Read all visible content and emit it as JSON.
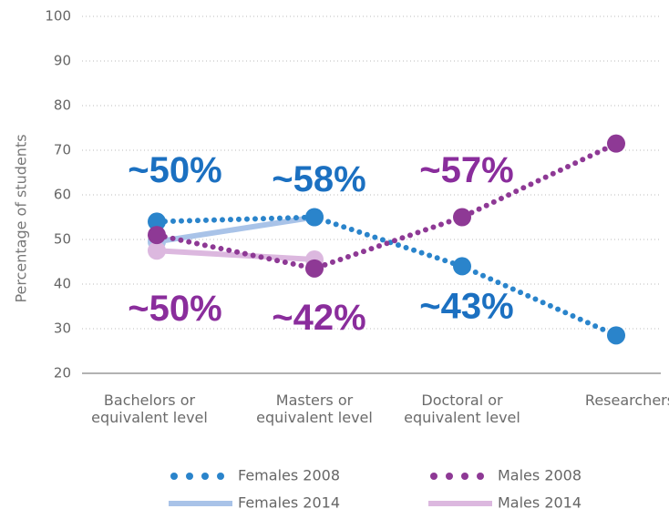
{
  "chart_data": {
    "type": "line",
    "ylabel": "Percentage of students",
    "categories": [
      "Bachelors or equivalent level",
      "Masters or equivalent level",
      "Doctoral or equivalent level",
      "Researchers"
    ],
    "series": [
      {
        "name": "Females 2014",
        "color": "#a9c3e8",
        "style": "solid",
        "values": [
          49.5,
          55,
          null,
          null
        ]
      },
      {
        "name": "Males 2014",
        "color": "#dcb8df",
        "style": "solid",
        "values": [
          47.5,
          45.5,
          null,
          null
        ]
      },
      {
        "name": "Females 2008",
        "color": "#2a84cb",
        "style": "dotted",
        "values": [
          54,
          55,
          44,
          28.5
        ]
      },
      {
        "name": "Males 2008",
        "color": "#8e3995",
        "style": "dotted",
        "values": [
          51,
          43.5,
          55,
          71.5
        ]
      }
    ],
    "legend_order": [
      2,
      3,
      0,
      1
    ],
    "ylim": [
      20,
      100
    ],
    "yticks": [
      20,
      30,
      40,
      50,
      60,
      70,
      80,
      90,
      100
    ],
    "grid": true,
    "annotations": [
      {
        "text": "~50%",
        "color": "#1b70c1",
        "category": 0,
        "value": 65
      },
      {
        "text": "~58%",
        "color": "#1b70c1",
        "category": 1,
        "value": 63
      },
      {
        "text": "~57%",
        "color": "#8a2d9c",
        "category": 2,
        "value": 65
      },
      {
        "text": "~50%",
        "color": "#8a2d9c",
        "category": 0,
        "value": 34
      },
      {
        "text": "~42%",
        "color": "#8a2d9c",
        "category": 1,
        "value": 32
      },
      {
        "text": "~43%",
        "color": "#1b70c1",
        "category": 2,
        "value": 34.5
      }
    ]
  }
}
